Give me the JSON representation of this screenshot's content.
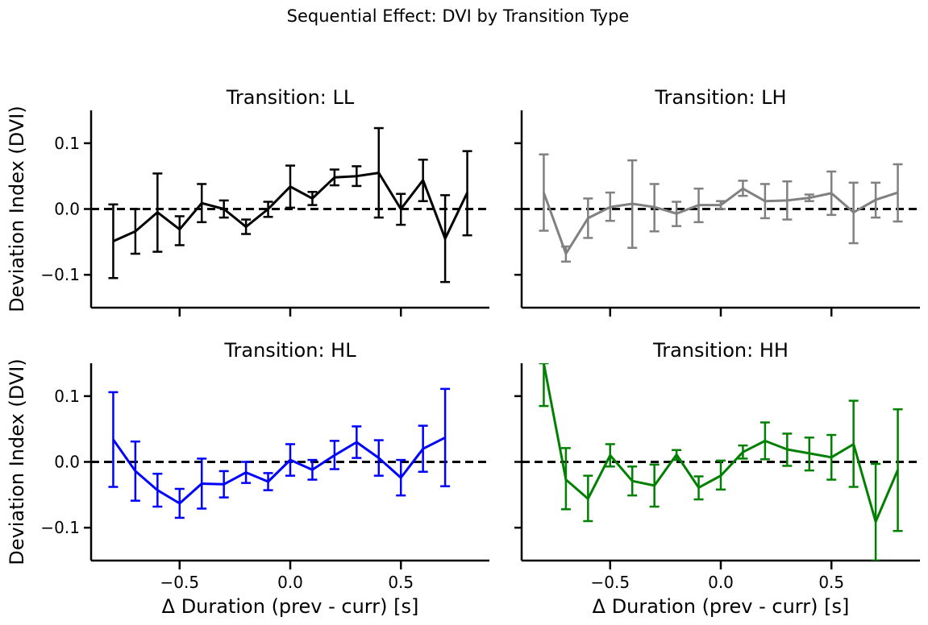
{
  "figure": {
    "suptitle": "Sequential Effect: DVI by Transition Type"
  },
  "chart_data": [
    {
      "type": "line",
      "title": "Transition: LL",
      "xlabel": "",
      "ylabel": "Deviation Index (DVI)",
      "xlim": [
        -0.9,
        0.9
      ],
      "ylim": [
        -0.15,
        0.15
      ],
      "x_ticks": [
        -0.5,
        0.0,
        0.5
      ],
      "y_ticks": [
        -0.1,
        0.0,
        0.1
      ],
      "y_tick_labels": [
        "−0.1",
        "0.0",
        "0.1"
      ],
      "reference_line": {
        "y": 0,
        "style": "dashed"
      },
      "series": [
        {
          "color": "#000000",
          "x": [
            -0.8,
            -0.7,
            -0.6,
            -0.5,
            -0.4,
            -0.3,
            -0.2,
            -0.1,
            0.0,
            0.1,
            0.2,
            0.3,
            0.4,
            0.5,
            0.6,
            0.7,
            0.8
          ],
          "y": [
            -0.049,
            -0.034,
            -0.005,
            -0.031,
            0.009,
            0.0,
            -0.027,
            0.0,
            0.034,
            0.016,
            0.048,
            0.05,
            0.055,
            0.0,
            0.044,
            -0.045,
            0.025
          ],
          "yerr_low": [
            -0.105,
            -0.068,
            -0.065,
            -0.055,
            -0.02,
            -0.013,
            -0.038,
            -0.012,
            0.002,
            0.006,
            0.036,
            0.035,
            -0.013,
            -0.024,
            0.012,
            -0.111,
            -0.04
          ],
          "yerr_high": [
            0.007,
            0.0,
            0.054,
            -0.011,
            0.038,
            0.013,
            -0.016,
            0.011,
            0.066,
            0.026,
            0.06,
            0.065,
            0.123,
            0.023,
            0.075,
            0.021,
            0.088
          ]
        }
      ]
    },
    {
      "type": "line",
      "title": "Transition: LH",
      "xlabel": "",
      "ylabel": "",
      "xlim": [
        -0.9,
        0.9
      ],
      "ylim": [
        -0.15,
        0.15
      ],
      "x_ticks": [
        -0.5,
        0.0,
        0.5
      ],
      "y_ticks": [
        -0.1,
        0.0,
        0.1
      ],
      "reference_line": {
        "y": 0,
        "style": "dashed"
      },
      "series": [
        {
          "color": "#808080",
          "x": [
            -0.8,
            -0.7,
            -0.6,
            -0.5,
            -0.4,
            -0.3,
            -0.2,
            -0.1,
            0.0,
            0.1,
            0.2,
            0.3,
            0.4,
            0.5,
            0.6,
            0.7,
            0.8
          ],
          "y": [
            0.025,
            -0.068,
            -0.014,
            0.003,
            0.008,
            0.003,
            -0.007,
            0.006,
            0.006,
            0.031,
            0.012,
            0.013,
            0.017,
            0.024,
            -0.005,
            0.014,
            0.025
          ],
          "yerr_low": [
            -0.033,
            -0.08,
            -0.044,
            -0.018,
            -0.059,
            -0.034,
            -0.026,
            -0.02,
            0.0,
            0.02,
            -0.014,
            -0.016,
            0.012,
            -0.009,
            -0.052,
            -0.013,
            -0.019
          ],
          "yerr_high": [
            0.083,
            -0.057,
            0.016,
            0.025,
            0.074,
            0.038,
            0.011,
            0.031,
            0.012,
            0.043,
            0.038,
            0.042,
            0.022,
            0.057,
            0.04,
            0.04,
            0.068
          ]
        }
      ]
    },
    {
      "type": "line",
      "title": "Transition: HL",
      "xlabel": "Δ Duration (prev - curr) [s]",
      "ylabel": "Deviation Index (DVI)",
      "xlim": [
        -0.9,
        0.9
      ],
      "ylim": [
        -0.15,
        0.15
      ],
      "x_ticks": [
        -0.5,
        0.0,
        0.5
      ],
      "x_tick_labels": [
        "−0.5",
        "0.0",
        "0.5"
      ],
      "y_ticks": [
        -0.1,
        0.0,
        0.1
      ],
      "y_tick_labels": [
        "−0.1",
        "0.0",
        "0.1"
      ],
      "reference_line": {
        "y": 0,
        "style": "dashed"
      },
      "series": [
        {
          "color": "#0000ff",
          "x": [
            -0.8,
            -0.7,
            -0.6,
            -0.5,
            -0.4,
            -0.3,
            -0.2,
            -0.1,
            0.0,
            0.1,
            0.2,
            0.3,
            0.4,
            0.5,
            0.6,
            0.7
          ],
          "y": [
            0.034,
            -0.014,
            -0.043,
            -0.063,
            -0.033,
            -0.034,
            -0.016,
            -0.03,
            0.003,
            -0.012,
            0.01,
            0.03,
            0.006,
            -0.024,
            0.02,
            0.037
          ],
          "yerr_low": [
            -0.038,
            -0.059,
            -0.068,
            -0.085,
            -0.071,
            -0.054,
            -0.032,
            -0.043,
            -0.021,
            -0.027,
            -0.011,
            0.006,
            -0.021,
            -0.051,
            -0.015,
            -0.037
          ],
          "yerr_high": [
            0.106,
            0.031,
            -0.018,
            -0.041,
            0.005,
            -0.014,
            0.0,
            -0.017,
            0.027,
            0.003,
            0.032,
            0.054,
            0.033,
            0.003,
            0.055,
            0.111
          ]
        }
      ]
    },
    {
      "type": "line",
      "title": "Transition: HH",
      "xlabel": "Δ Duration (prev - curr) [s]",
      "ylabel": "",
      "xlim": [
        -0.9,
        0.9
      ],
      "ylim": [
        -0.15,
        0.15
      ],
      "x_ticks": [
        -0.5,
        0.0,
        0.5
      ],
      "x_tick_labels": [
        "−0.5",
        "0.0",
        "0.5"
      ],
      "y_ticks": [
        -0.1,
        0.0,
        0.1
      ],
      "reference_line": {
        "y": 0,
        "style": "dashed"
      },
      "series": [
        {
          "color": "#008000",
          "x": [
            -0.8,
            -0.7,
            -0.6,
            -0.5,
            -0.4,
            -0.3,
            -0.2,
            -0.1,
            0.0,
            0.1,
            0.2,
            0.3,
            0.4,
            0.5,
            0.6,
            0.7,
            0.8
          ],
          "y": [
            0.15,
            -0.027,
            -0.056,
            0.01,
            -0.029,
            -0.036,
            0.011,
            -0.039,
            -0.021,
            0.015,
            0.032,
            0.019,
            0.013,
            0.007,
            0.027,
            -0.091,
            -0.012
          ],
          "yerr_low": [
            0.085,
            -0.072,
            -0.09,
            -0.007,
            -0.051,
            -0.068,
            0.003,
            -0.057,
            -0.042,
            0.005,
            0.004,
            -0.006,
            -0.013,
            -0.027,
            -0.038,
            -0.15,
            -0.105
          ],
          "yerr_high": [
            0.15,
            0.021,
            -0.021,
            0.027,
            -0.007,
            -0.004,
            0.018,
            -0.022,
            0.002,
            0.025,
            0.06,
            0.043,
            0.037,
            0.041,
            0.093,
            -0.003,
            0.08
          ]
        }
      ]
    }
  ]
}
